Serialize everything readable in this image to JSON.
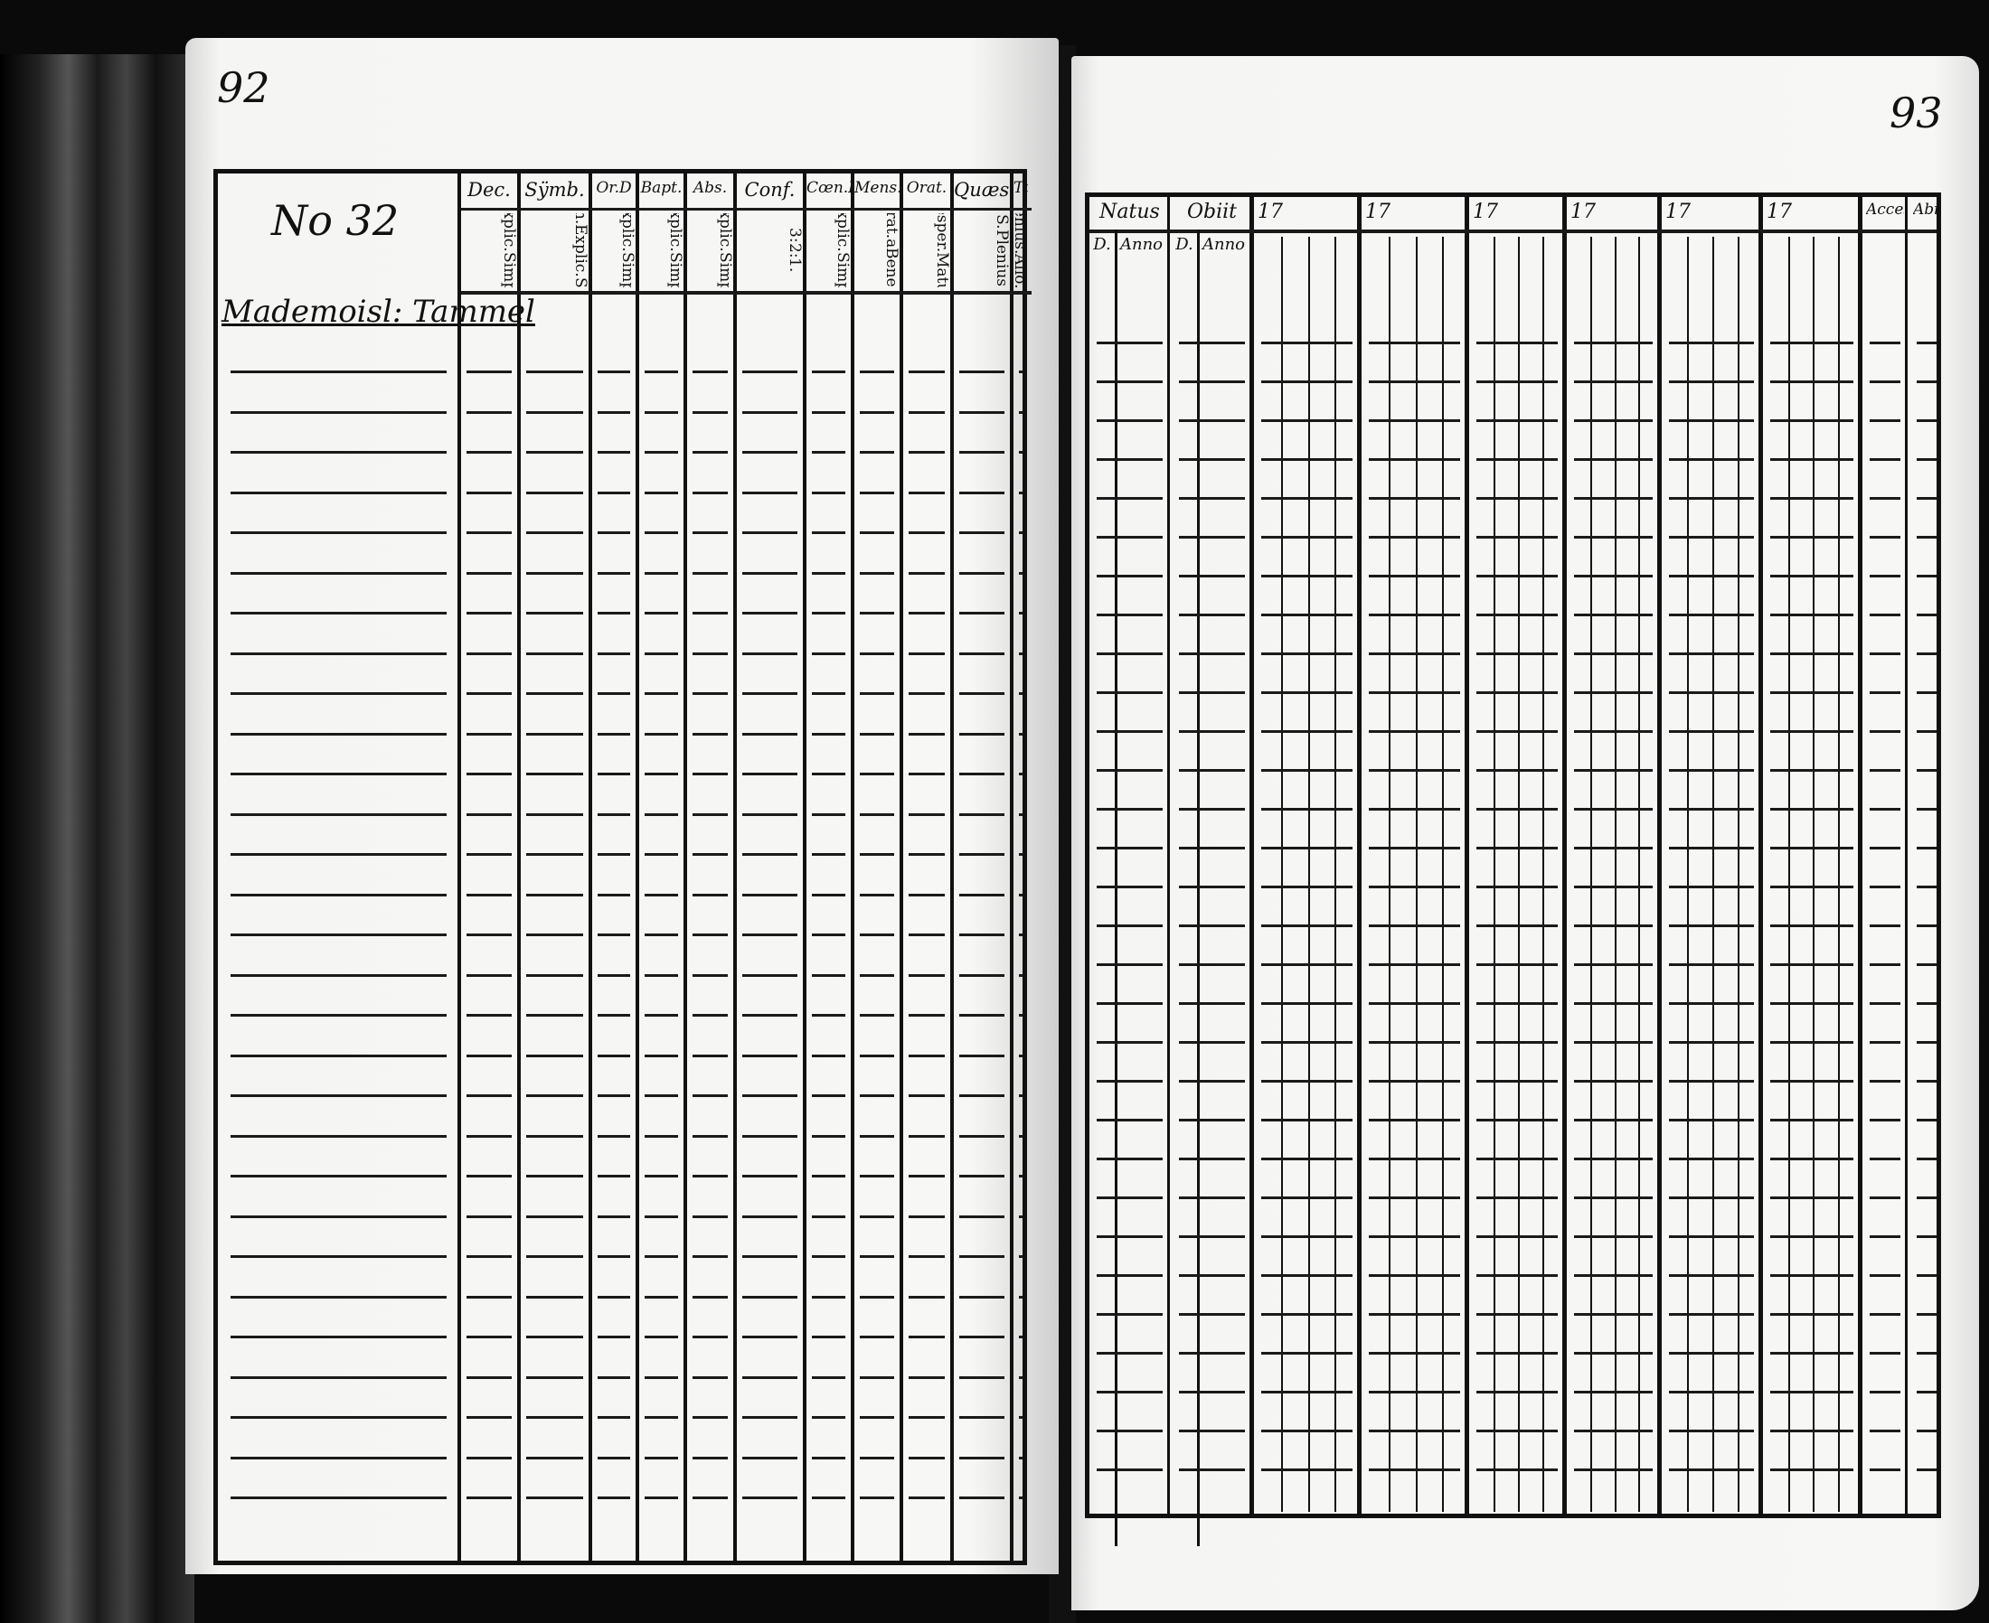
{
  "left_page": {
    "page_number": "92",
    "entry_number": "No 32",
    "name_entry": "Mademoisl: Tammel",
    "columns": [
      {
        "header": "Dec.",
        "sub": [
          "Explic.",
          "Simpl."
        ]
      },
      {
        "header": "Sÿmb.",
        "sub": [
          "Athan.",
          "Explic.",
          "Simpl."
        ]
      },
      {
        "header": "Or.D",
        "sub": [
          "Explic.",
          "Simpl."
        ]
      },
      {
        "header": "Bapt.",
        "sub": [
          "Explic.",
          "Simpl."
        ]
      },
      {
        "header": "Abs.",
        "sub": [
          "Explic.",
          "Simpl."
        ]
      },
      {
        "header": "Conf.",
        "sub": [
          "3:",
          "2:",
          "1."
        ]
      },
      {
        "header": "Cœn.D",
        "sub": [
          "Explic.",
          "Simpl."
        ]
      },
      {
        "header": "Mens.",
        "sub": [
          "Grat.a",
          "Bened."
        ]
      },
      {
        "header": "Orat.",
        "sub": [
          "Vesper.",
          "Matut."
        ]
      },
      {
        "header": "Quæst.",
        "sub": [
          "Dicta.s.S.",
          "Plenius.",
          "Alio.m."
        ]
      },
      {
        "header": "Tab.",
        "sub": [
          "Plenius.",
          "Alio.m."
        ]
      }
    ]
  },
  "right_page": {
    "page_number": "93",
    "columns": [
      {
        "header": "Natus",
        "sub": [
          "D.",
          "Anno"
        ]
      },
      {
        "header": "Obiit",
        "sub": [
          "D.",
          "Anno"
        ]
      },
      {
        "header": "17"
      },
      {
        "header": "17"
      },
      {
        "header": "17"
      },
      {
        "header": "17"
      },
      {
        "header": "17"
      },
      {
        "header": "17"
      },
      {
        "header": "Acces."
      },
      {
        "header": "Abit."
      }
    ]
  }
}
